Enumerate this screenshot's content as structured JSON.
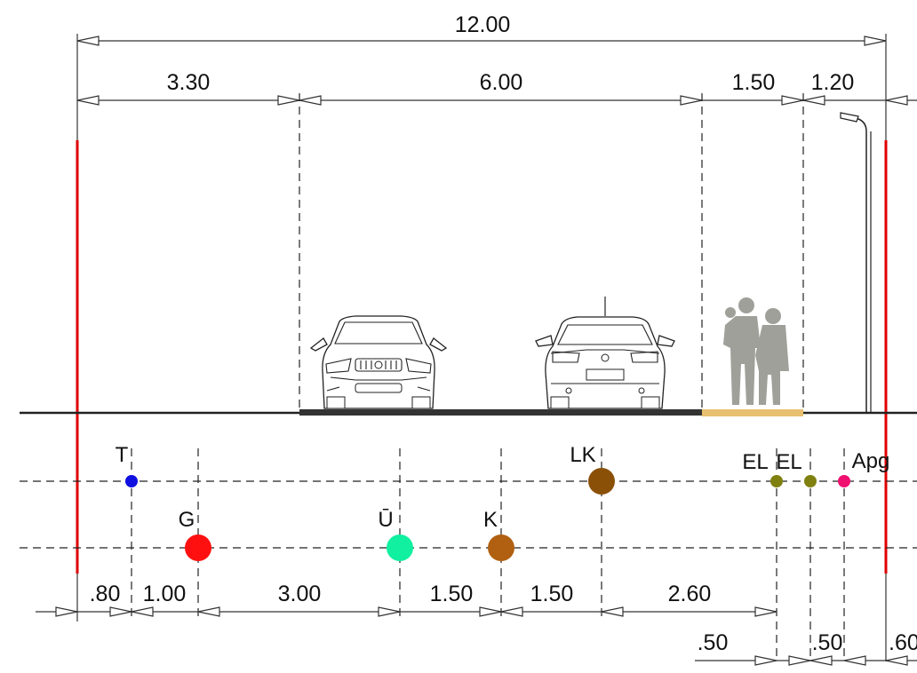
{
  "dimensions": {
    "total": "12.00",
    "segments": [
      "3.30",
      "6.00",
      "1.50",
      "1.20"
    ],
    "bottom_row1": [
      ".80",
      "1.00",
      "3.00",
      "1.50",
      "1.50",
      "2.60"
    ],
    "bottom_row2": [
      ".50",
      ".50",
      ".60"
    ]
  },
  "utilities": [
    {
      "label": "T",
      "color": "#1010e0"
    },
    {
      "label": "G",
      "color": "#ff1010"
    },
    {
      "label": "Ū",
      "color": "#10f0a0"
    },
    {
      "label": "K",
      "color": "#b06010"
    },
    {
      "label": "LK",
      "color": "#8b5008"
    },
    {
      "label": "EL",
      "color": "#808010"
    },
    {
      "label": "EL",
      "color": "#808010"
    },
    {
      "label": "Apg",
      "color": "#f01070"
    }
  ],
  "colors": {
    "boundary": "#e00000",
    "road": "#333333",
    "sidewalk": "#e8c070",
    "pedestrians": "#a0a09a"
  },
  "icons": [
    "car-front-icon",
    "car-rear-icon",
    "pedestrians-icon",
    "street-lamp-icon"
  ]
}
